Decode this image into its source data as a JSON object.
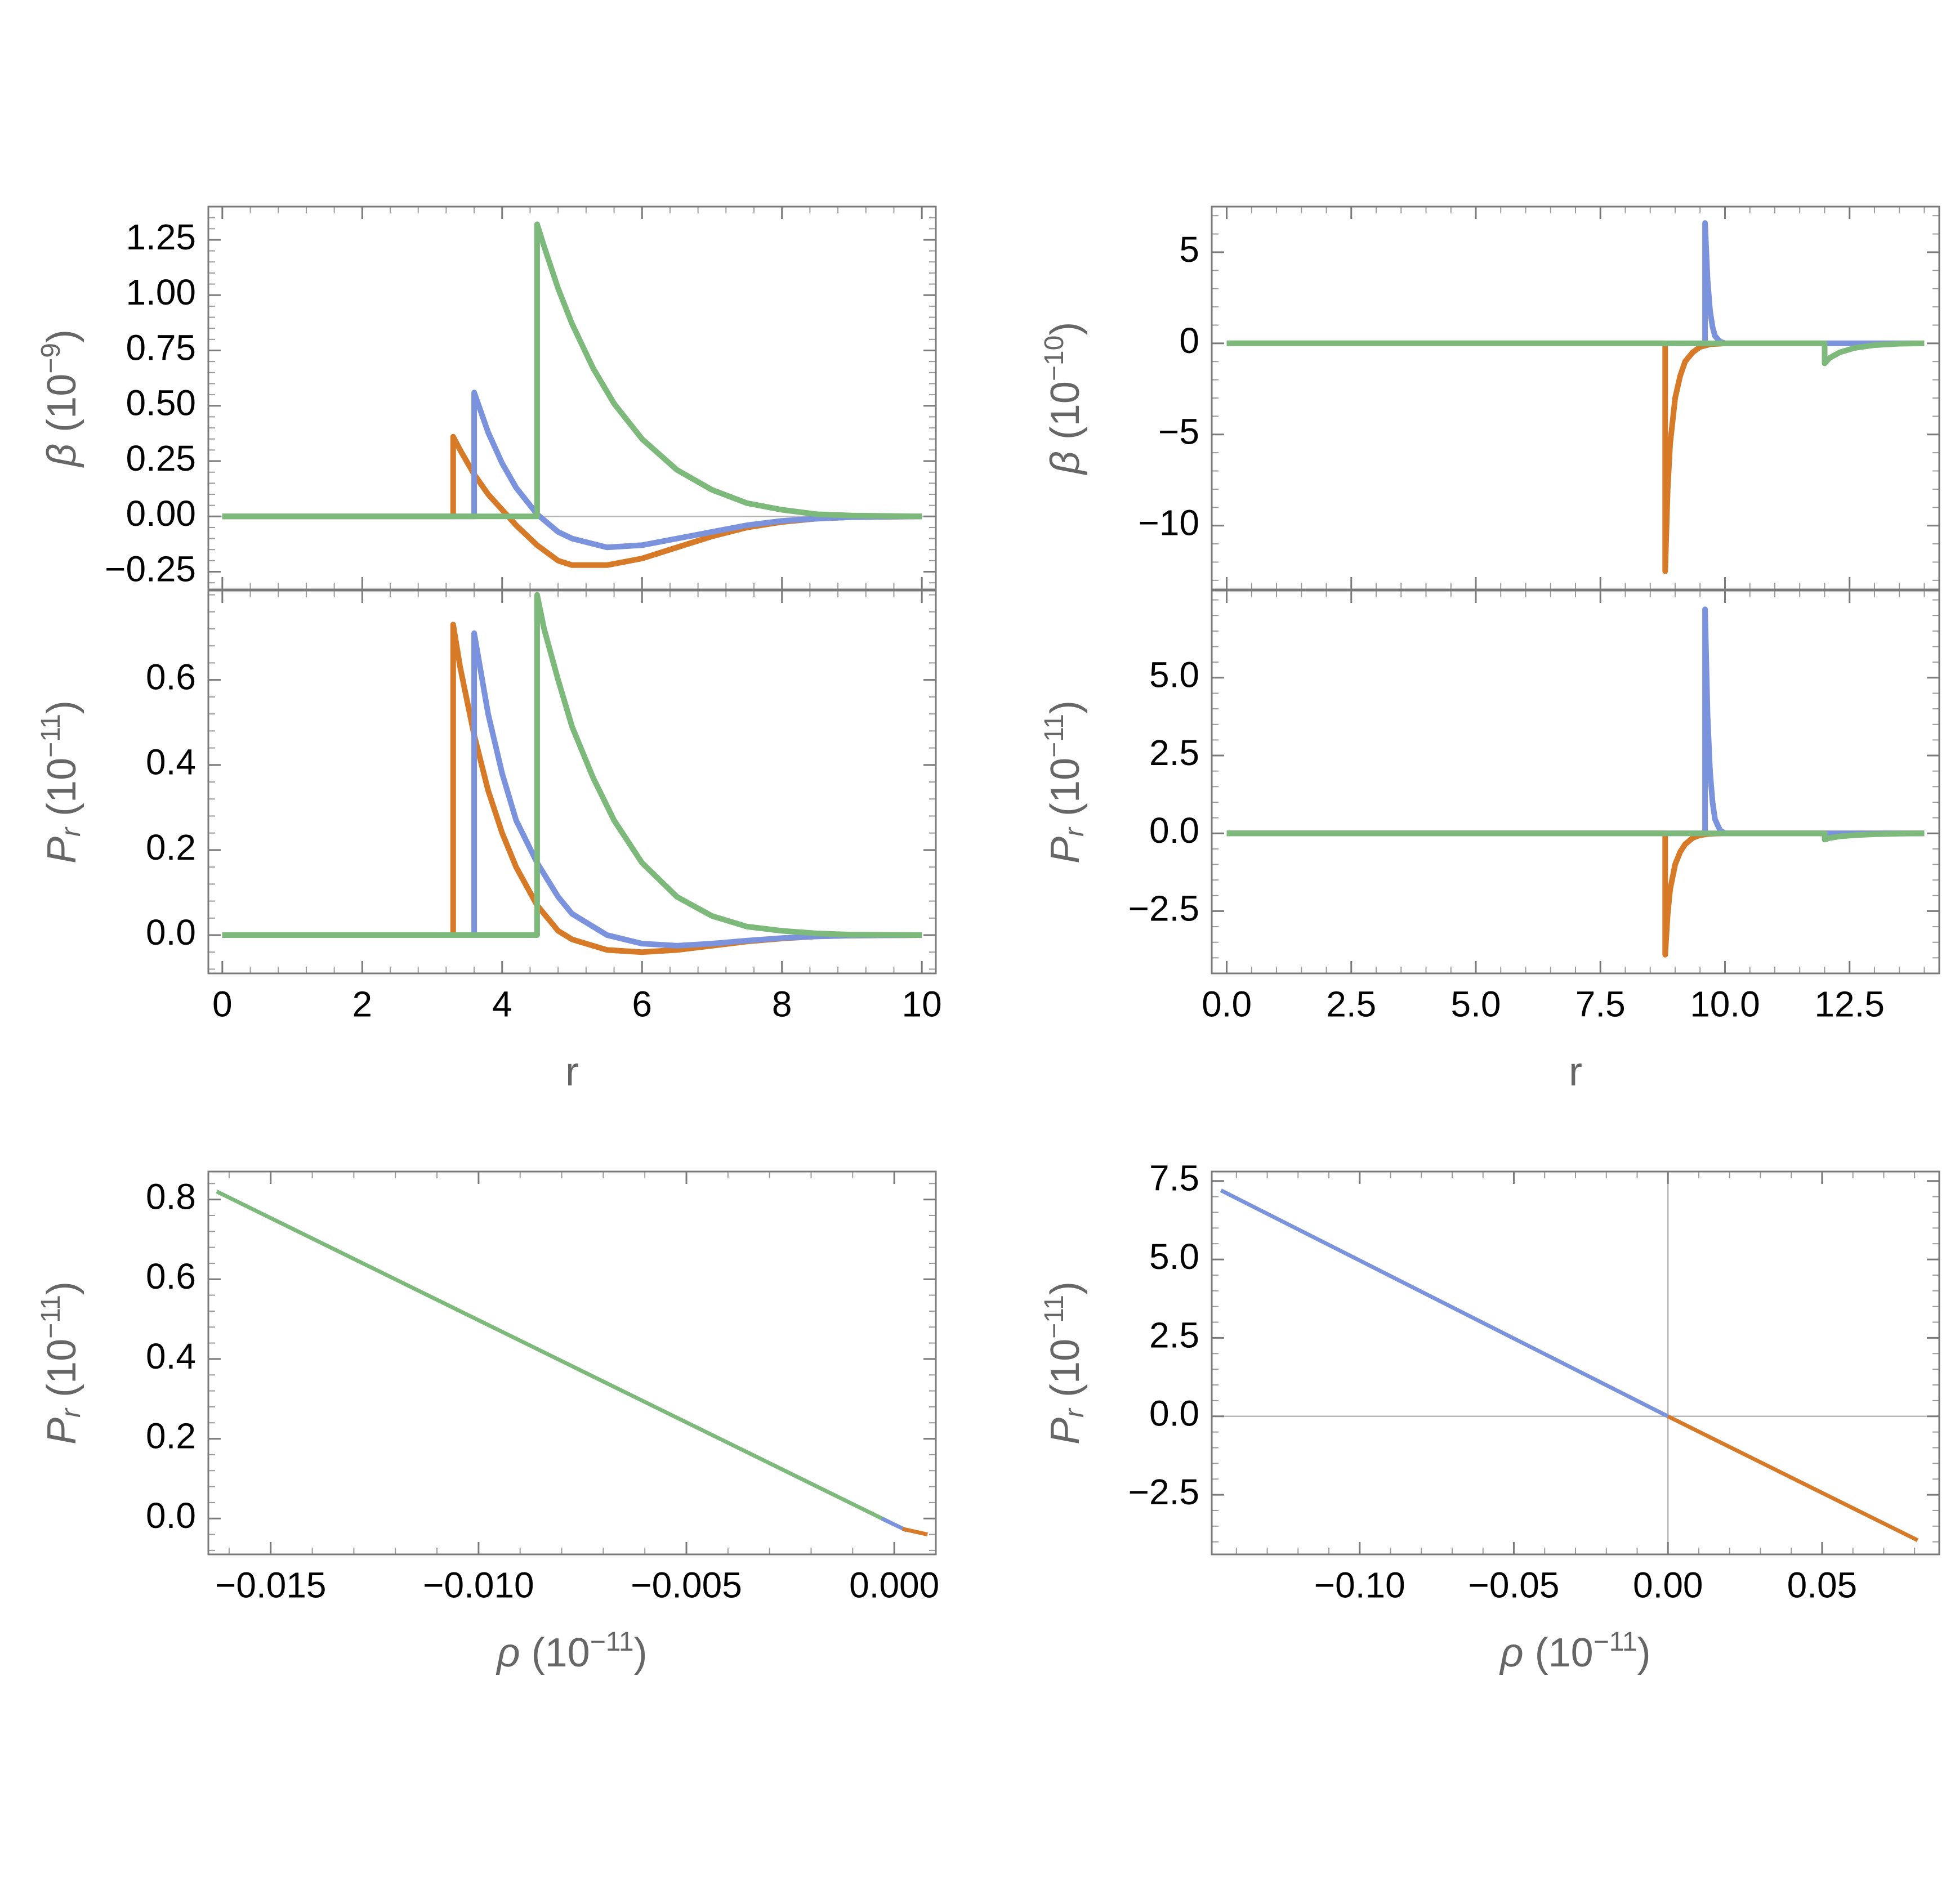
{
  "colors": {
    "orange": "#D67A28",
    "blue": "#7B93DC",
    "green": "#7DB97A",
    "axis": "#7a7a7a",
    "label": "#666666"
  },
  "chart_data": [
    {
      "id": "A",
      "type": "line",
      "ylabel_parts": {
        "sym": "β",
        "base": " (10",
        "exp": "−9",
        "close": ")"
      },
      "xlabel": "",
      "xlim": [
        -0.2,
        10.2
      ],
      "ylim": [
        -0.33,
        1.4
      ],
      "yticks": [
        -0.25,
        0,
        0.25,
        0.5,
        0.75,
        1.0,
        1.25
      ],
      "ytick_labels": [
        "−0.25",
        "0.00",
        "0.25",
        "0.50",
        "0.75",
        "1.00",
        "1.25"
      ],
      "xticks": [
        0,
        2,
        4,
        6,
        8,
        10
      ],
      "xtick_labels": [],
      "zero_line": {
        "y": 0
      },
      "series": [
        {
          "color_key": "orange",
          "x": [
            0,
            3.3,
            3.3,
            3.4,
            3.6,
            3.8,
            4.0,
            4.2,
            4.5,
            4.8,
            5.0,
            5.5,
            6.0,
            6.5,
            7.0,
            7.5,
            8.0,
            8.5,
            9.0,
            10.0
          ],
          "y": [
            0,
            0,
            0.36,
            0.3,
            0.19,
            0.1,
            0.03,
            -0.04,
            -0.13,
            -0.2,
            -0.22,
            -0.22,
            -0.19,
            -0.14,
            -0.09,
            -0.05,
            -0.025,
            -0.01,
            -0.003,
            0
          ]
        },
        {
          "color_key": "blue",
          "x": [
            0,
            3.6,
            3.6,
            3.8,
            4.0,
            4.2,
            4.5,
            4.8,
            5.0,
            5.5,
            6.0,
            6.5,
            7.0,
            7.5,
            8.0,
            8.5,
            9.0,
            10.0
          ],
          "y": [
            0,
            0,
            0.56,
            0.38,
            0.24,
            0.13,
            0.01,
            -0.07,
            -0.1,
            -0.14,
            -0.13,
            -0.1,
            -0.07,
            -0.04,
            -0.02,
            -0.01,
            -0.003,
            0
          ]
        },
        {
          "color_key": "green",
          "x": [
            0,
            4.5,
            4.5,
            4.6,
            4.8,
            5.0,
            5.3,
            5.6,
            6.0,
            6.5,
            7.0,
            7.5,
            8.0,
            8.5,
            9.0,
            10.0
          ],
          "y": [
            0,
            0,
            1.32,
            1.22,
            1.03,
            0.87,
            0.67,
            0.51,
            0.35,
            0.21,
            0.12,
            0.06,
            0.03,
            0.01,
            0.004,
            0
          ]
        }
      ]
    },
    {
      "id": "B",
      "type": "line",
      "ylabel_parts": {
        "sym": "β",
        "base": " (10",
        "exp": "−10",
        "close": ")"
      },
      "xlabel": "",
      "xlim": [
        -0.3,
        14.3
      ],
      "ylim": [
        -13.5,
        7.5
      ],
      "yticks": [
        -10,
        -5,
        0,
        5
      ],
      "ytick_labels": [
        "−10",
        "−5",
        "0",
        "5"
      ],
      "xticks": [
        0,
        2.5,
        5,
        7.5,
        10,
        12.5
      ],
      "xtick_labels": [],
      "zero_line": null,
      "series": [
        {
          "color_key": "orange",
          "x": [
            0,
            8.8,
            8.8,
            8.85,
            8.9,
            9.0,
            9.1,
            9.2,
            9.35,
            9.5,
            9.7,
            10.0,
            14.0
          ],
          "y": [
            0,
            0,
            -12.5,
            -8.0,
            -5.5,
            -3.0,
            -1.8,
            -1.0,
            -0.5,
            -0.2,
            -0.05,
            0,
            0
          ]
        },
        {
          "color_key": "blue",
          "x": [
            0,
            9.6,
            9.6,
            9.65,
            9.7,
            9.75,
            9.8,
            9.9,
            10.0,
            14.0
          ],
          "y": [
            0,
            0,
            6.6,
            3.5,
            1.8,
            0.9,
            0.4,
            0.1,
            0,
            0
          ]
        },
        {
          "color_key": "green",
          "x": [
            0,
            12.0,
            12.0,
            12.1,
            12.3,
            12.6,
            13.0,
            13.5,
            14.0
          ],
          "y": [
            0,
            0,
            -1.1,
            -0.8,
            -0.5,
            -0.25,
            -0.1,
            -0.02,
            0
          ]
        }
      ]
    },
    {
      "id": "C",
      "type": "line",
      "ylabel_parts": {
        "sym": "P",
        "sub": "r",
        "base": " (10",
        "exp": "−11",
        "close": ")"
      },
      "xlabel_parts": {
        "text": "r"
      },
      "xlim": [
        -0.2,
        10.2
      ],
      "ylim": [
        -0.09,
        0.81
      ],
      "yticks": [
        0,
        0.2,
        0.4,
        0.6
      ],
      "ytick_labels": [
        "0.0",
        "0.2",
        "0.4",
        "0.6"
      ],
      "xticks": [
        0,
        2,
        4,
        6,
        8,
        10
      ],
      "xtick_labels": [
        "0",
        "2",
        "4",
        "6",
        "8",
        "10"
      ],
      "zero_line": null,
      "series": [
        {
          "color_key": "orange",
          "x": [
            0,
            3.3,
            3.3,
            3.4,
            3.6,
            3.8,
            4.0,
            4.2,
            4.5,
            4.8,
            5.0,
            5.5,
            6.0,
            6.5,
            7.0,
            7.5,
            8.0,
            8.5,
            9.0,
            10.0
          ],
          "y": [
            0,
            0,
            0.73,
            0.63,
            0.47,
            0.34,
            0.24,
            0.16,
            0.07,
            0.01,
            -0.01,
            -0.035,
            -0.04,
            -0.035,
            -0.025,
            -0.015,
            -0.008,
            -0.003,
            -0.001,
            0
          ]
        },
        {
          "color_key": "blue",
          "x": [
            0,
            3.6,
            3.6,
            3.8,
            4.0,
            4.2,
            4.5,
            4.8,
            5.0,
            5.5,
            6.0,
            6.5,
            7.0,
            7.5,
            8.0,
            8.5,
            9.0,
            10.0
          ],
          "y": [
            0,
            0,
            0.71,
            0.52,
            0.38,
            0.27,
            0.17,
            0.09,
            0.05,
            0.0,
            -0.02,
            -0.025,
            -0.02,
            -0.013,
            -0.007,
            -0.003,
            -0.001,
            0
          ]
        },
        {
          "color_key": "green",
          "x": [
            0,
            4.5,
            4.5,
            4.6,
            4.8,
            5.0,
            5.3,
            5.6,
            6.0,
            6.5,
            7.0,
            7.5,
            8.0,
            8.5,
            9.0,
            10.0
          ],
          "y": [
            0,
            0,
            0.8,
            0.72,
            0.6,
            0.49,
            0.37,
            0.27,
            0.17,
            0.09,
            0.045,
            0.02,
            0.01,
            0.004,
            0.001,
            0
          ]
        }
      ]
    },
    {
      "id": "D",
      "type": "line",
      "ylabel_parts": {
        "sym": "P",
        "sub": "r",
        "base": " (10",
        "exp": "−11",
        "close": ")"
      },
      "xlabel_parts": {
        "text": "r"
      },
      "xlim": [
        -0.3,
        14.3
      ],
      "ylim": [
        -4.5,
        7.8
      ],
      "yticks": [
        -2.5,
        0,
        2.5,
        5
      ],
      "ytick_labels": [
        "−2.5",
        "0.0",
        "2.5",
        "5.0"
      ],
      "xticks": [
        0,
        2.5,
        5,
        7.5,
        10,
        12.5
      ],
      "xtick_labels": [
        "0.0",
        "2.5",
        "5.0",
        "7.5",
        "10.0",
        "12.5"
      ],
      "zero_line": null,
      "series": [
        {
          "color_key": "orange",
          "x": [
            0,
            8.8,
            8.8,
            8.85,
            8.9,
            9.0,
            9.1,
            9.2,
            9.35,
            9.5,
            9.7,
            10.0,
            14.0
          ],
          "y": [
            0,
            0,
            -3.9,
            -2.6,
            -1.8,
            -1.0,
            -0.6,
            -0.35,
            -0.15,
            -0.06,
            -0.015,
            0,
            0
          ]
        },
        {
          "color_key": "blue",
          "x": [
            0,
            9.6,
            9.6,
            9.65,
            9.7,
            9.75,
            9.8,
            9.9,
            10.0,
            14.0
          ],
          "y": [
            0,
            0,
            7.2,
            3.8,
            2.0,
            1.0,
            0.45,
            0.1,
            0,
            0
          ]
        },
        {
          "color_key": "green",
          "x": [
            0,
            12.0,
            12.0,
            12.1,
            12.3,
            12.6,
            13.0,
            13.5,
            14.0
          ],
          "y": [
            0,
            0,
            -0.2,
            -0.15,
            -0.1,
            -0.06,
            -0.03,
            -0.01,
            0
          ]
        }
      ]
    },
    {
      "id": "E",
      "type": "line",
      "ylabel_parts": {
        "sym": "P",
        "sub": "r",
        "base": " (10",
        "exp": "−11",
        "close": ")"
      },
      "xlabel_parts": {
        "sym": "ρ",
        "base": "  (10",
        "exp": "−11",
        "close": ")"
      },
      "xlim": [
        -0.0165,
        0.001
      ],
      "ylim": [
        -0.09,
        0.87
      ],
      "yticks": [
        0,
        0.2,
        0.4,
        0.6,
        0.8
      ],
      "ytick_labels": [
        "0.0",
        "0.2",
        "0.4",
        "0.6",
        "0.8"
      ],
      "xticks": [
        -0.015,
        -0.01,
        -0.005,
        0
      ],
      "xtick_labels": [
        "−0.015",
        "−0.010",
        "−0.005",
        "0.000"
      ],
      "zero_line": null,
      "series": [
        {
          "color_key": "green",
          "x": [
            -0.0163,
            -0.0001
          ],
          "y": [
            0.82,
            -0.01
          ]
        },
        {
          "color_key": "blue",
          "x": [
            -0.0003,
            0.0003
          ],
          "y": [
            0.0,
            -0.03
          ]
        },
        {
          "color_key": "orange",
          "x": [
            0.0002,
            0.0008
          ],
          "y": [
            -0.026,
            -0.04
          ]
        }
      ]
    },
    {
      "id": "F",
      "type": "line",
      "ylabel_parts": {
        "sym": "P",
        "sub": "r",
        "base": " (10",
        "exp": "−11",
        "close": ")"
      },
      "xlabel_parts": {
        "sym": "ρ",
        "base": " (10",
        "exp": "−11",
        "close": ")"
      },
      "xlim": [
        -0.148,
        0.088
      ],
      "ylim": [
        -4.4,
        7.8
      ],
      "yticks": [
        -2.5,
        0,
        2.5,
        5,
        7.5
      ],
      "ytick_labels": [
        "−2.5",
        "0.0",
        "2.5",
        "5.0",
        "7.5"
      ],
      "xticks": [
        -0.1,
        -0.05,
        0,
        0.05
      ],
      "xtick_labels": [
        "−0.10",
        "−0.05",
        "0.00",
        "0.05"
      ],
      "zero_line": {
        "x": 0,
        "y": 0
      },
      "series": [
        {
          "color_key": "blue",
          "x": [
            -0.145,
            0.0
          ],
          "y": [
            7.2,
            0.0
          ]
        },
        {
          "color_key": "orange",
          "x": [
            0.0,
            0.081
          ],
          "y": [
            0.0,
            -3.95
          ]
        }
      ]
    }
  ]
}
